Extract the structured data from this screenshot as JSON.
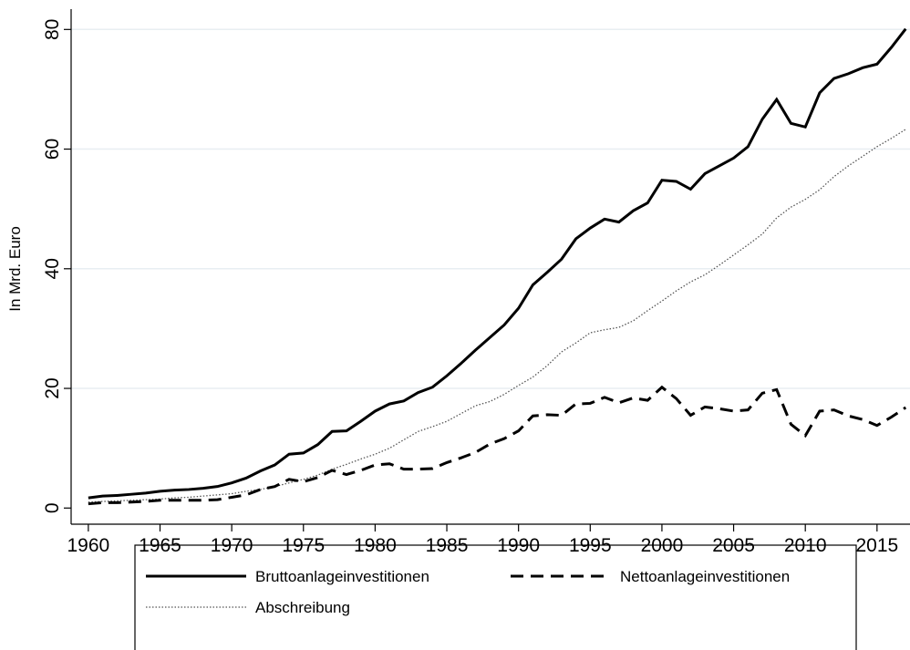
{
  "chart_data": {
    "type": "line",
    "ylabel": "In Mrd. Euro",
    "x": [
      1960,
      1961,
      1962,
      1963,
      1964,
      1965,
      1966,
      1967,
      1968,
      1969,
      1970,
      1971,
      1972,
      1973,
      1974,
      1975,
      1976,
      1977,
      1978,
      1979,
      1980,
      1981,
      1982,
      1983,
      1984,
      1985,
      1986,
      1987,
      1988,
      1989,
      1990,
      1991,
      1992,
      1993,
      1994,
      1995,
      1996,
      1997,
      1998,
      1999,
      2000,
      2001,
      2002,
      2003,
      2004,
      2005,
      2006,
      2007,
      2008,
      2009,
      2010,
      2011,
      2012,
      2013,
      2014,
      2015,
      2016,
      2017
    ],
    "series": [
      {
        "name": "Bruttoanlageinvestitionen",
        "color": "#000000",
        "dash": "solid",
        "values": [
          1.7,
          2.0,
          2.1,
          2.3,
          2.5,
          2.8,
          3.0,
          3.1,
          3.3,
          3.6,
          4.2,
          5.0,
          6.2,
          7.2,
          9.0,
          9.2,
          10.6,
          12.8,
          12.9,
          14.5,
          16.2,
          17.4,
          17.9,
          19.3,
          20.2,
          22.1,
          24.2,
          26.4,
          28.5,
          30.6,
          33.4,
          37.3,
          39.4,
          41.6,
          45.0,
          46.8,
          48.3,
          47.8,
          49.7,
          51.0,
          54.8,
          54.6,
          53.3,
          55.9,
          57.2,
          58.5,
          60.4,
          65.0,
          68.3,
          64.3,
          63.7,
          69.4,
          71.8,
          72.6,
          73.6,
          74.2,
          77.0,
          80.1
        ]
      },
      {
        "name": "Nettoanlageinvestitionen",
        "color": "#000000",
        "dash": "dash",
        "values": [
          0.7,
          0.9,
          0.9,
          1.0,
          1.1,
          1.3,
          1.3,
          1.3,
          1.3,
          1.4,
          1.8,
          2.2,
          3.1,
          3.6,
          4.8,
          4.4,
          5.1,
          6.3,
          5.6,
          6.3,
          7.2,
          7.4,
          6.5,
          6.5,
          6.6,
          7.6,
          8.4,
          9.3,
          10.7,
          11.6,
          12.9,
          15.4,
          15.6,
          15.5,
          17.4,
          17.5,
          18.5,
          17.6,
          18.4,
          18.0,
          20.2,
          18.3,
          15.5,
          16.9,
          16.6,
          16.2,
          16.4,
          19.2,
          19.8,
          14.0,
          12.1,
          16.2,
          16.4,
          15.4,
          14.8,
          13.8,
          15.2,
          16.8
        ]
      },
      {
        "name": "Abschreibung",
        "color": "#555555",
        "dash": "dot",
        "values": [
          1.0,
          1.1,
          1.2,
          1.3,
          1.4,
          1.5,
          1.7,
          1.8,
          2.0,
          2.2,
          2.4,
          2.8,
          3.1,
          3.6,
          4.2,
          4.8,
          5.5,
          6.5,
          7.3,
          8.2,
          9.0,
          10.0,
          11.4,
          12.8,
          13.6,
          14.5,
          15.8,
          17.1,
          17.8,
          19.0,
          20.5,
          21.9,
          23.8,
          26.1,
          27.6,
          29.3,
          29.8,
          30.2,
          31.3,
          33.0,
          34.6,
          36.3,
          37.8,
          39.0,
          40.6,
          42.3,
          44.0,
          45.8,
          48.5,
          50.3,
          51.6,
          53.2,
          55.4,
          57.2,
          58.8,
          60.4,
          61.8,
          63.3
        ]
      }
    ],
    "xlim": [
      1958.8,
      2017.3
    ],
    "xticks": [
      1960,
      1965,
      1970,
      1975,
      1980,
      1985,
      1990,
      1995,
      2000,
      2005,
      2010,
      2015
    ],
    "ylim": [
      -2.7,
      83.4
    ],
    "yticks": [
      0,
      20,
      40,
      60,
      80
    ],
    "grid": true
  }
}
